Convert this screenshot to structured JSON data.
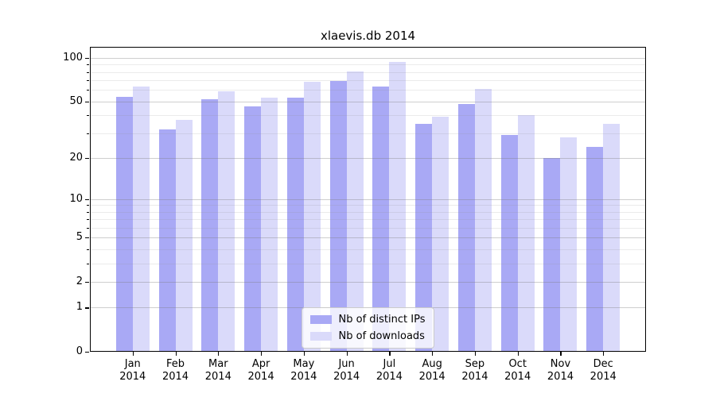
{
  "chart_data": {
    "type": "bar",
    "title": "xlaevis.db 2014",
    "categories": [
      {
        "month": "Jan",
        "year": "2014"
      },
      {
        "month": "Feb",
        "year": "2014"
      },
      {
        "month": "Mar",
        "year": "2014"
      },
      {
        "month": "Apr",
        "year": "2014"
      },
      {
        "month": "May",
        "year": "2014"
      },
      {
        "month": "Jun",
        "year": "2014"
      },
      {
        "month": "Jul",
        "year": "2014"
      },
      {
        "month": "Aug",
        "year": "2014"
      },
      {
        "month": "Sep",
        "year": "2014"
      },
      {
        "month": "Oct",
        "year": "2014"
      },
      {
        "month": "Nov",
        "year": "2014"
      },
      {
        "month": "Dec",
        "year": "2014"
      }
    ],
    "series": [
      {
        "name": "Nb of distinct IPs",
        "color": "#a9a9f5",
        "values": [
          54,
          32,
          52,
          46,
          53,
          69,
          63,
          35,
          48,
          29,
          20,
          24
        ]
      },
      {
        "name": "Nb of downloads",
        "color": "#dadafa",
        "values": [
          63,
          37,
          59,
          53,
          68,
          81,
          94,
          39,
          61,
          40,
          28,
          35
        ]
      }
    ],
    "yscale": "log1p",
    "ylim": [
      0,
      119
    ],
    "yticks": [
      100,
      50,
      20,
      10,
      5,
      2,
      1,
      0
    ],
    "minor_gridlines": [
      90,
      80,
      70,
      60,
      40,
      30,
      9,
      8,
      7,
      6,
      4,
      3
    ],
    "xlabel": "",
    "ylabel": "",
    "grid": true,
    "legend_position": "lower center"
  }
}
